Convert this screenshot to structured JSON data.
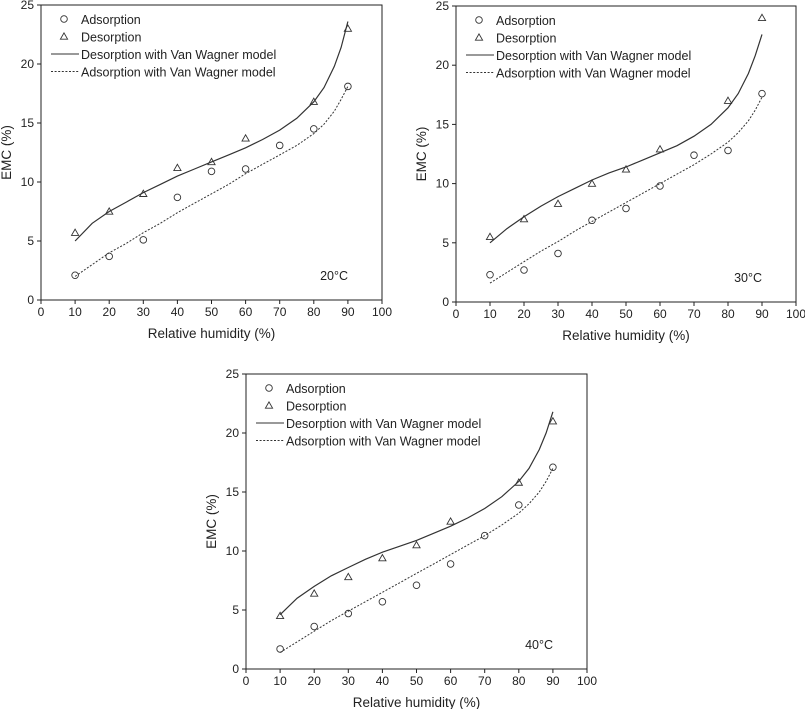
{
  "chart_data": [
    {
      "type": "line",
      "x_label": "Relative humidity (%)",
      "y_label": "EMC (%)",
      "xlim": [
        0,
        100
      ],
      "ylim": [
        0,
        25
      ],
      "x_ticks": [
        0,
        10,
        20,
        30,
        40,
        50,
        60,
        70,
        80,
        90,
        100
      ],
      "y_ticks": [
        0,
        5,
        10,
        15,
        20,
        25
      ],
      "annotation": "20°C",
      "legend_position": "top-left",
      "series": [
        {
          "name": "Adsorption",
          "kind": "points",
          "marker": "circle",
          "x": [
            10,
            20,
            30,
            40,
            50,
            60,
            70,
            80,
            90
          ],
          "y": [
            2.1,
            3.7,
            5.1,
            8.7,
            10.9,
            11.1,
            13.1,
            14.5,
            18.1
          ]
        },
        {
          "name": "Desorption",
          "kind": "points",
          "marker": "triangle",
          "x": [
            10,
            20,
            30,
            40,
            50,
            60,
            70,
            80,
            90
          ],
          "y": [
            5.7,
            7.5,
            9.0,
            11.2,
            11.7,
            13.7,
            null,
            16.8,
            23.0
          ]
        },
        {
          "name": "Desorption with Van Wagner model",
          "kind": "line",
          "dash": "solid",
          "x": [
            10,
            15,
            20,
            25,
            30,
            35,
            40,
            45,
            50,
            55,
            60,
            65,
            70,
            75,
            80,
            83,
            86,
            88,
            90
          ],
          "y": [
            5.0,
            6.5,
            7.5,
            8.3,
            9.1,
            9.8,
            10.5,
            11.1,
            11.7,
            12.3,
            12.9,
            13.6,
            14.4,
            15.4,
            16.8,
            18.0,
            19.8,
            21.4,
            23.6
          ]
        },
        {
          "name": "Adsorption with Van Wagner model",
          "kind": "line",
          "dash": "dotted",
          "x": [
            10,
            15,
            20,
            25,
            30,
            35,
            40,
            45,
            50,
            55,
            60,
            65,
            70,
            75,
            80,
            83,
            86,
            88,
            90
          ],
          "y": [
            2.0,
            3.0,
            4.0,
            4.8,
            5.7,
            6.5,
            7.4,
            8.2,
            9.0,
            9.8,
            10.7,
            11.5,
            12.3,
            13.1,
            14.1,
            14.9,
            16.0,
            17.0,
            18.1
          ]
        }
      ]
    },
    {
      "type": "line",
      "x_label": "Relative humidity (%)",
      "y_label": "EMC (%)",
      "xlim": [
        0,
        100
      ],
      "ylim": [
        0,
        25
      ],
      "x_ticks": [
        0,
        10,
        20,
        30,
        40,
        50,
        60,
        70,
        80,
        90,
        100
      ],
      "y_ticks": [
        0,
        5,
        10,
        15,
        20,
        25
      ],
      "annotation": "30°C",
      "legend_position": "top-left",
      "series": [
        {
          "name": "Adsorption",
          "kind": "points",
          "marker": "circle",
          "x": [
            10,
            20,
            30,
            40,
            50,
            60,
            70,
            80,
            90
          ],
          "y": [
            2.3,
            2.7,
            4.1,
            6.9,
            7.9,
            9.8,
            12.4,
            12.8,
            17.6
          ]
        },
        {
          "name": "Desorption",
          "kind": "points",
          "marker": "triangle",
          "x": [
            10,
            20,
            30,
            40,
            50,
            60,
            70,
            80,
            90
          ],
          "y": [
            5.5,
            7.0,
            8.3,
            10.0,
            11.2,
            12.9,
            null,
            17.0,
            24.0
          ]
        },
        {
          "name": "Desorption with Van Wagner model",
          "kind": "line",
          "dash": "solid",
          "x": [
            10,
            15,
            20,
            25,
            30,
            35,
            40,
            45,
            50,
            55,
            60,
            65,
            70,
            75,
            80,
            83,
            86,
            88,
            90
          ],
          "y": [
            5.0,
            6.2,
            7.2,
            8.1,
            8.9,
            9.6,
            10.3,
            10.9,
            11.4,
            12.0,
            12.6,
            13.2,
            14.0,
            15.0,
            16.4,
            17.6,
            19.3,
            20.8,
            22.6
          ]
        },
        {
          "name": "Adsorption with Van Wagner model",
          "kind": "line",
          "dash": "dotted",
          "x": [
            10,
            15,
            20,
            25,
            30,
            35,
            40,
            45,
            50,
            55,
            60,
            65,
            70,
            75,
            80,
            83,
            86,
            88,
            90
          ],
          "y": [
            1.6,
            2.5,
            3.4,
            4.3,
            5.1,
            6.0,
            6.8,
            7.6,
            8.4,
            9.2,
            10.0,
            10.8,
            11.6,
            12.5,
            13.5,
            14.3,
            15.3,
            16.2,
            17.3
          ]
        }
      ]
    },
    {
      "type": "line",
      "x_label": "Relative humidity (%)",
      "y_label": "EMC (%)",
      "xlim": [
        0,
        100
      ],
      "ylim": [
        0,
        25
      ],
      "x_ticks": [
        0,
        10,
        20,
        30,
        40,
        50,
        60,
        70,
        80,
        90,
        100
      ],
      "y_ticks": [
        0,
        5,
        10,
        15,
        20,
        25
      ],
      "annotation": "40°C",
      "legend_position": "top-left",
      "series": [
        {
          "name": "Adsorption",
          "kind": "points",
          "marker": "circle",
          "x": [
            10,
            20,
            30,
            40,
            50,
            60,
            70,
            80,
            90
          ],
          "y": [
            1.7,
            3.6,
            4.7,
            5.7,
            7.1,
            8.9,
            11.3,
            13.9,
            17.1
          ]
        },
        {
          "name": "Desorption",
          "kind": "points",
          "marker": "triangle",
          "x": [
            10,
            20,
            30,
            40,
            50,
            60,
            70,
            80,
            90
          ],
          "y": [
            4.5,
            6.4,
            7.8,
            9.4,
            10.5,
            12.5,
            null,
            15.8,
            21.0
          ]
        },
        {
          "name": "Desorption with Van Wagner model",
          "kind": "line",
          "dash": "solid",
          "x": [
            10,
            15,
            20,
            25,
            30,
            35,
            40,
            45,
            50,
            55,
            60,
            65,
            70,
            75,
            80,
            83,
            86,
            88,
            90
          ],
          "y": [
            4.6,
            6.0,
            7.0,
            7.9,
            8.6,
            9.3,
            9.9,
            10.4,
            10.9,
            11.5,
            12.1,
            12.8,
            13.6,
            14.6,
            15.9,
            17.0,
            18.6,
            20.0,
            21.8
          ]
        },
        {
          "name": "Adsorption with Van Wagner model",
          "kind": "line",
          "dash": "dotted",
          "x": [
            10,
            15,
            20,
            25,
            30,
            35,
            40,
            45,
            50,
            55,
            60,
            65,
            70,
            75,
            80,
            83,
            86,
            88,
            90
          ],
          "y": [
            1.4,
            2.3,
            3.2,
            4.1,
            4.9,
            5.7,
            6.5,
            7.3,
            8.1,
            8.9,
            9.7,
            10.5,
            11.3,
            12.2,
            13.2,
            14.0,
            15.0,
            15.9,
            17.0
          ]
        }
      ]
    }
  ]
}
